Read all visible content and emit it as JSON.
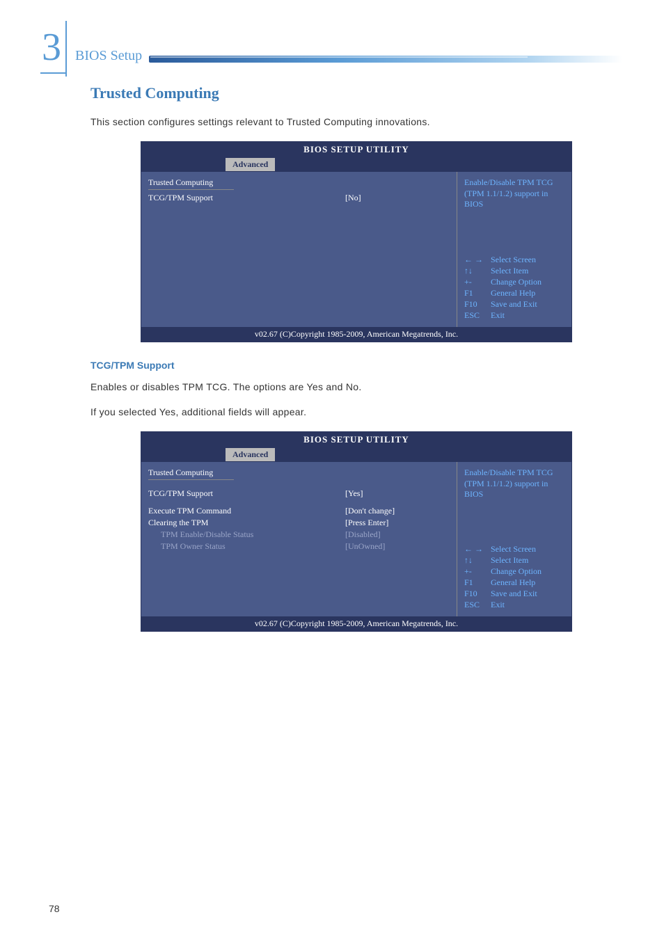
{
  "chapter_number": "3",
  "header_label": "BIOS Setup",
  "section_title": "Trusted Computing",
  "intro_text": "This section configures settings relevant to Trusted Computing innovations.",
  "subheading": "TCG/TPM Support",
  "body_text_1": "Enables or disables TPM TCG. The options are Yes and No.",
  "body_text_2": "If you selected Yes, additional fields will appear.",
  "page_number": "78",
  "bios": {
    "title": "BIOS SETUP UTILITY",
    "tab": "Advanced",
    "footer": "v02.67 (C)Copyright 1985-2009, American Megatrends, Inc.",
    "section_head": "Trusted Computing",
    "help_text": "Enable/Disable TPM TCG (TPM 1.1/1.2) support in BIOS",
    "nav": [
      {
        "key": "← →",
        "action": "Select Screen"
      },
      {
        "key": "↑↓",
        "action": "Select Item"
      },
      {
        "key": "+-",
        "action": "Change Option"
      },
      {
        "key": "F1",
        "action": "General Help"
      },
      {
        "key": "F10",
        "action": "Save and Exit"
      },
      {
        "key": "ESC",
        "action": "Exit"
      }
    ]
  },
  "panel1": {
    "rows": [
      {
        "label": "TCG/TPM Support",
        "value": "[No]"
      }
    ]
  },
  "panel2": {
    "rows": [
      {
        "label": "TCG/TPM Support",
        "value": "[Yes]",
        "space": true
      },
      {
        "label": "Execute TPM Command",
        "value": "[Don't change]",
        "space": true
      },
      {
        "label": "Clearing the TPM",
        "value": "[Press Enter]"
      },
      {
        "label": "TPM Enable/Disable Status",
        "value": "[Disabled]",
        "indent": true
      },
      {
        "label": "TPM Owner Status",
        "value": "[UnOwned]",
        "indent": true
      }
    ]
  }
}
